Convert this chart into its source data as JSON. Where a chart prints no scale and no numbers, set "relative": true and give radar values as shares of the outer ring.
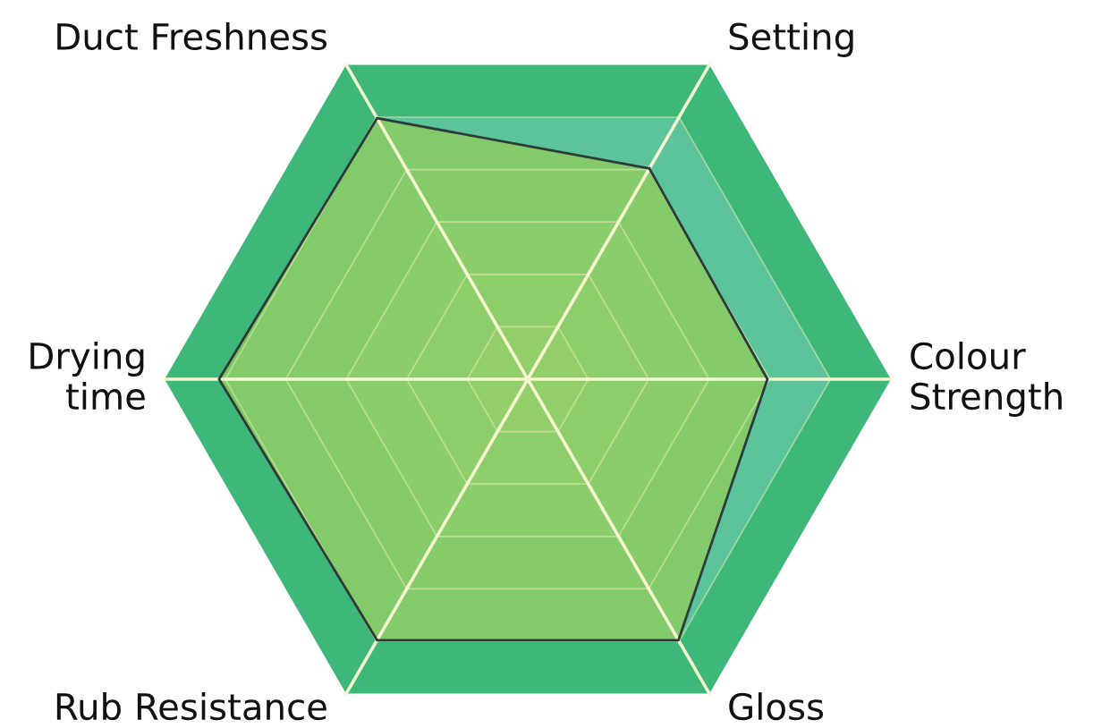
{
  "chart_data": {
    "type": "radar",
    "relative": true,
    "categories": [
      "Setting",
      "Colour\nStrength",
      "Gloss",
      "Rub Resistance",
      "Drying\ntime",
      "Duct Freshness"
    ],
    "series": [
      {
        "color": "#8fcc5a",
        "values": [
          0.67,
          0.66,
          0.83,
          0.83,
          0.85,
          0.83
        ]
      }
    ],
    "grid": true,
    "marker": "none",
    "line_style": "solid"
  }
}
